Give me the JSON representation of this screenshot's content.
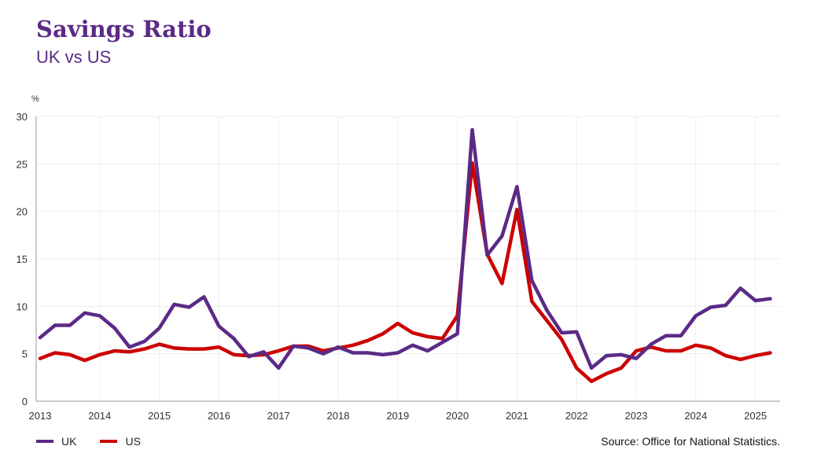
{
  "title": "Savings Ratio",
  "subtitle": "UK vs US",
  "source": "Source: Office for National Statistics.",
  "chart_data": {
    "type": "line",
    "title": "Savings Ratio",
    "subtitle": "UK vs US",
    "ylabel": "%",
    "ylim": [
      0,
      30
    ],
    "yticks": [
      0,
      5,
      10,
      15,
      20,
      25,
      30
    ],
    "xticks": [
      "2013",
      "2014",
      "2015",
      "2016",
      "2017",
      "2018",
      "2019",
      "2020",
      "2021",
      "2022",
      "2023",
      "2024",
      "2025"
    ],
    "grid": true,
    "legend": "bottom-left",
    "x_start": "2013 Q1",
    "x_step": "quarter",
    "series": [
      {
        "name": "UK",
        "color": "#5b2a86",
        "values": [
          6.7,
          8.0,
          8.0,
          9.3,
          9.0,
          7.7,
          5.7,
          6.3,
          7.7,
          10.2,
          9.9,
          11.0,
          7.9,
          6.6,
          4.7,
          5.2,
          3.5,
          5.8,
          5.6,
          5.0,
          5.7,
          5.1,
          5.1,
          4.9,
          5.1,
          5.9,
          5.3,
          6.2,
          7.1,
          28.6,
          15.4,
          17.4,
          22.6,
          12.7,
          9.6,
          7.2,
          7.3,
          3.5,
          4.8,
          4.9,
          4.5,
          6.0,
          6.9,
          6.9,
          9.0,
          9.9,
          10.1,
          11.9,
          10.6,
          10.8
        ]
      },
      {
        "name": "US",
        "color": "#cc0000",
        "values": [
          4.5,
          5.1,
          4.9,
          4.3,
          4.9,
          5.3,
          5.2,
          5.5,
          6.0,
          5.6,
          5.5,
          5.5,
          5.7,
          4.9,
          4.8,
          4.9,
          5.3,
          5.8,
          5.8,
          5.3,
          5.6,
          5.9,
          6.4,
          7.1,
          8.2,
          7.2,
          6.8,
          6.6,
          9.0,
          25.1,
          15.5,
          12.4,
          20.2,
          10.5,
          8.5,
          6.5,
          3.5,
          2.1,
          2.9,
          3.5,
          5.3,
          5.7,
          5.3,
          5.3,
          5.9,
          5.6,
          4.8,
          4.4,
          4.8,
          5.1
        ]
      }
    ]
  }
}
